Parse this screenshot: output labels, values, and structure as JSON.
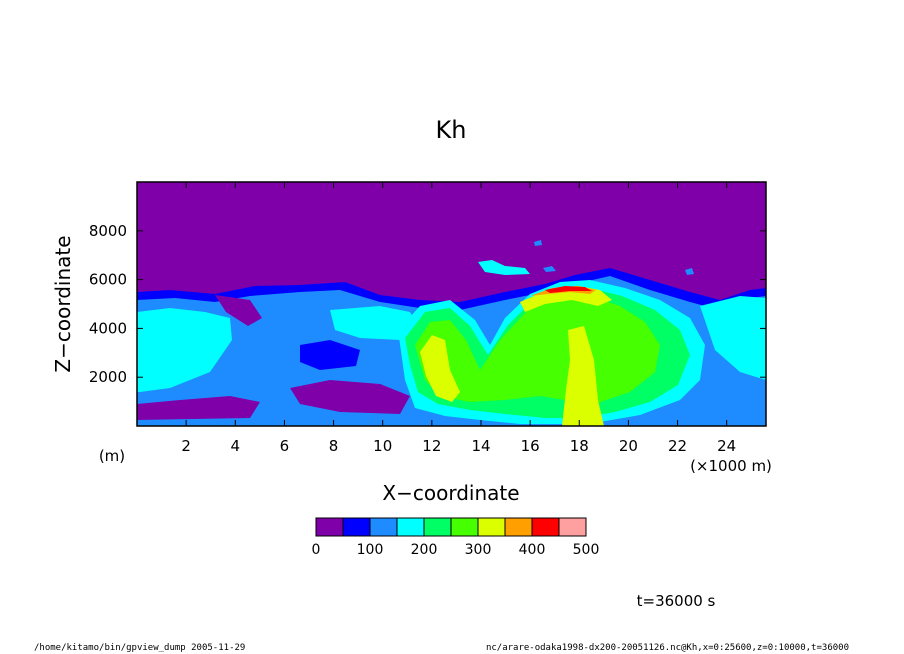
{
  "chart_data": {
    "type": "heatmap",
    "title": "Kh",
    "xlabel": "X−coordinate",
    "ylabel": "Z−coordinate",
    "x_unit": "(×1000 m)",
    "y_unit": "(m)",
    "xlim": [
      0,
      25.6
    ],
    "ylim": [
      0,
      10000
    ],
    "x_ticks": [
      2,
      4,
      6,
      8,
      10,
      12,
      14,
      16,
      18,
      20,
      22,
      24
    ],
    "y_ticks": [
      2000,
      4000,
      6000,
      8000
    ],
    "colorbar": {
      "levels": [
        0,
        50,
        100,
        150,
        200,
        250,
        300,
        350,
        400,
        450,
        500
      ],
      "tick_labels": [
        "0",
        "100",
        "200",
        "300",
        "400",
        "500"
      ],
      "colors": [
        "#7f00a8",
        "#0000ff",
        "#1e8cff",
        "#00ffff",
        "#00ff64",
        "#46ff00",
        "#dcff00",
        "#ffa000",
        "#ff0000",
        "#ffa0a0"
      ]
    },
    "time_label": "t=36000 s",
    "features": [
      {
        "region": "lower turbulent layer",
        "x_range": [
          0,
          25.6
        ],
        "z_range": [
          0,
          5500
        ],
        "value_range": [
          0,
          150
        ]
      },
      {
        "region": "rising plume",
        "x_range": [
          11,
          21
        ],
        "z_range": [
          0,
          5800
        ],
        "value_range": [
          200,
          400
        ]
      },
      {
        "region": "peak near top of plume",
        "x": 17.5,
        "z": 5600,
        "value": 450
      },
      {
        "region": "upper quiescent layer",
        "z_range": [
          6000,
          10000
        ],
        "value_range": [
          0,
          50
        ]
      }
    ]
  },
  "footer": {
    "left": "/home/kitamo/bin/gpview_dump  2005-11-29",
    "right": "nc/arare-odaka1998-dx200-20051126.nc@Kh,x=0:25600,z=0:10000,t=36000"
  }
}
